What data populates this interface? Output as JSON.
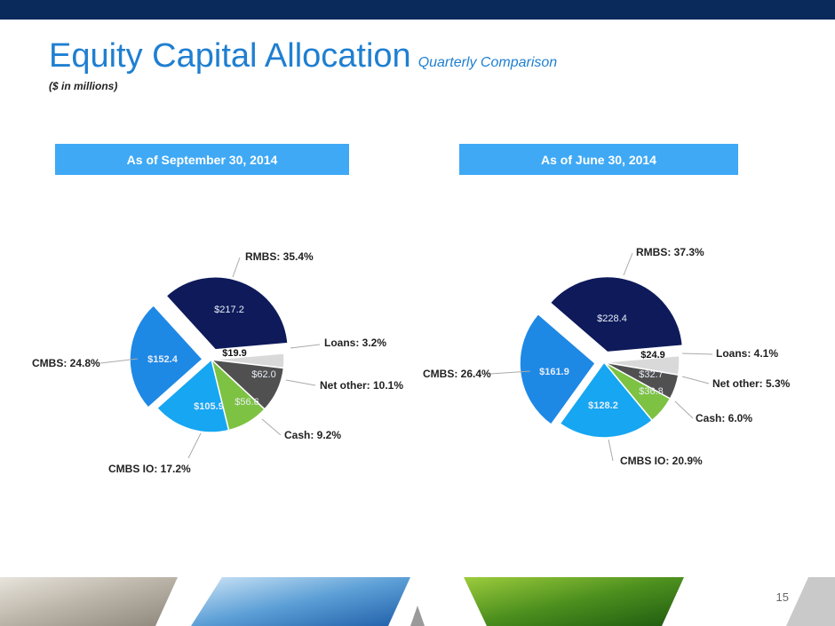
{
  "header": {
    "title": "Equity Capital Allocation",
    "subtitle": "Quarterly Comparison",
    "units": "($ in millions)"
  },
  "page_number": "15",
  "colors": {
    "rmbs": "#0e1a5a",
    "loans": "#d9d9d9",
    "net_other": "#505050",
    "cash": "#7dc242",
    "cmbs_io": "#16a6f2",
    "cmbs": "#1e88e5",
    "header_box": "#3fa9f5",
    "title": "#1f7fd1"
  },
  "chart_data": [
    {
      "type": "pie",
      "title": "As of September 30, 2014",
      "slices": [
        {
          "name": "RMBS",
          "label": "RMBS: 35.4%",
          "value": 217.2,
          "value_label": "$217.2",
          "percent": 35.4,
          "color": "#0e1a5a"
        },
        {
          "name": "Loans",
          "label": "Loans: 3.2%",
          "value": 19.9,
          "value_label": "$19.9",
          "percent": 3.2,
          "color": "#d9d9d9"
        },
        {
          "name": "Net other",
          "label": "Net other: 10.1%",
          "value": 62.0,
          "value_label": "$62.0",
          "percent": 10.1,
          "color": "#505050"
        },
        {
          "name": "Cash",
          "label": "Cash: 9.2%",
          "value": 56.6,
          "value_label": "$56.6",
          "percent": 9.2,
          "color": "#7dc242"
        },
        {
          "name": "CMBS IO",
          "label": "CMBS IO: 17.2%",
          "value": 105.9,
          "value_label": "$105.9",
          "percent": 17.2,
          "color": "#16a6f2"
        },
        {
          "name": "CMBS",
          "label": "CMBS: 24.8%",
          "value": 152.4,
          "value_label": "$152.4",
          "percent": 24.8,
          "color": "#1e88e5"
        }
      ]
    },
    {
      "type": "pie",
      "title": "As of June 30, 2014",
      "slices": [
        {
          "name": "RMBS",
          "label": "RMBS: 37.3%",
          "value": 228.4,
          "value_label": "$228.4",
          "percent": 37.3,
          "color": "#0e1a5a"
        },
        {
          "name": "Loans",
          "label": "Loans: 4.1%",
          "value": 24.9,
          "value_label": "$24.9",
          "percent": 4.1,
          "color": "#d9d9d9"
        },
        {
          "name": "Net other",
          "label": "Net other: 5.3%",
          "value": 32.7,
          "value_label": "$32.7",
          "percent": 5.3,
          "color": "#505050"
        },
        {
          "name": "Cash",
          "label": "Cash: 6.0%",
          "value": 36.8,
          "value_label": "$36.8",
          "percent": 6.0,
          "color": "#7dc242"
        },
        {
          "name": "CMBS IO",
          "label": "CMBS IO: 20.9%",
          "value": 128.2,
          "value_label": "$128.2",
          "percent": 20.9,
          "color": "#16a6f2"
        },
        {
          "name": "CMBS",
          "label": "CMBS: 26.4%",
          "value": 161.9,
          "value_label": "$161.9",
          "percent": 26.4,
          "color": "#1e88e5"
        }
      ]
    }
  ]
}
